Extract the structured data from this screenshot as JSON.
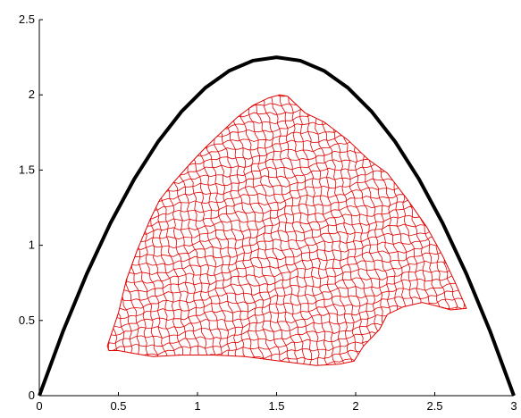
{
  "chart_data": {
    "type": "line",
    "title": "",
    "xlabel": "",
    "ylabel": "",
    "xlim": [
      0,
      3
    ],
    "ylim": [
      0,
      2.5
    ],
    "x_ticks": [
      "0",
      "0.5",
      "1",
      "1.5",
      "2",
      "2.5",
      "3"
    ],
    "y_ticks": [
      "0",
      "0.5",
      "1",
      "1.5",
      "2",
      "2.5"
    ],
    "grid": false,
    "series": [
      {
        "kind": "curve",
        "color": "#000000",
        "x": [
          0,
          0.15,
          0.3,
          0.45,
          0.6,
          0.75,
          0.9,
          1.05,
          1.2,
          1.35,
          1.5,
          1.65,
          1.8,
          1.95,
          2.1,
          2.25,
          2.4,
          2.55,
          2.7,
          2.85,
          3
        ],
        "y": [
          0,
          0.4275,
          0.81,
          1.1475,
          1.44,
          1.6875,
          1.89,
          2.0475,
          2.16,
          2.2275,
          2.25,
          2.2275,
          2.16,
          2.0475,
          1.89,
          1.6875,
          1.44,
          1.1475,
          0.81,
          0.4275,
          0
        ]
      },
      {
        "kind": "mesh",
        "color": "#e00000",
        "outline_x": [
          0.43,
          0.5,
          0.55,
          0.62,
          0.7,
          0.76,
          0.85,
          0.96,
          1.05,
          1.15,
          1.25,
          1.35,
          1.45,
          1.52,
          1.57,
          1.68,
          1.8,
          1.95,
          2.08,
          2.2,
          2.33,
          2.45,
          2.55,
          2.63,
          2.7,
          2.6,
          2.5,
          2.42,
          2.3,
          2.2,
          2.15,
          2.05,
          1.99,
          1.9,
          1.75,
          1.6,
          1.45,
          1.3,
          1.1,
          0.9,
          0.72,
          0.6,
          0.5,
          0.44,
          0.43
        ],
        "outline_y": [
          0.33,
          0.55,
          0.77,
          0.97,
          1.17,
          1.3,
          1.42,
          1.55,
          1.65,
          1.75,
          1.85,
          1.93,
          1.98,
          2.0,
          1.99,
          1.88,
          1.82,
          1.7,
          1.57,
          1.48,
          1.3,
          1.12,
          0.93,
          0.75,
          0.58,
          0.57,
          0.6,
          0.62,
          0.59,
          0.54,
          0.44,
          0.33,
          0.23,
          0.21,
          0.2,
          0.22,
          0.24,
          0.26,
          0.27,
          0.27,
          0.26,
          0.28,
          0.3,
          0.3,
          0.33
        ]
      }
    ]
  }
}
